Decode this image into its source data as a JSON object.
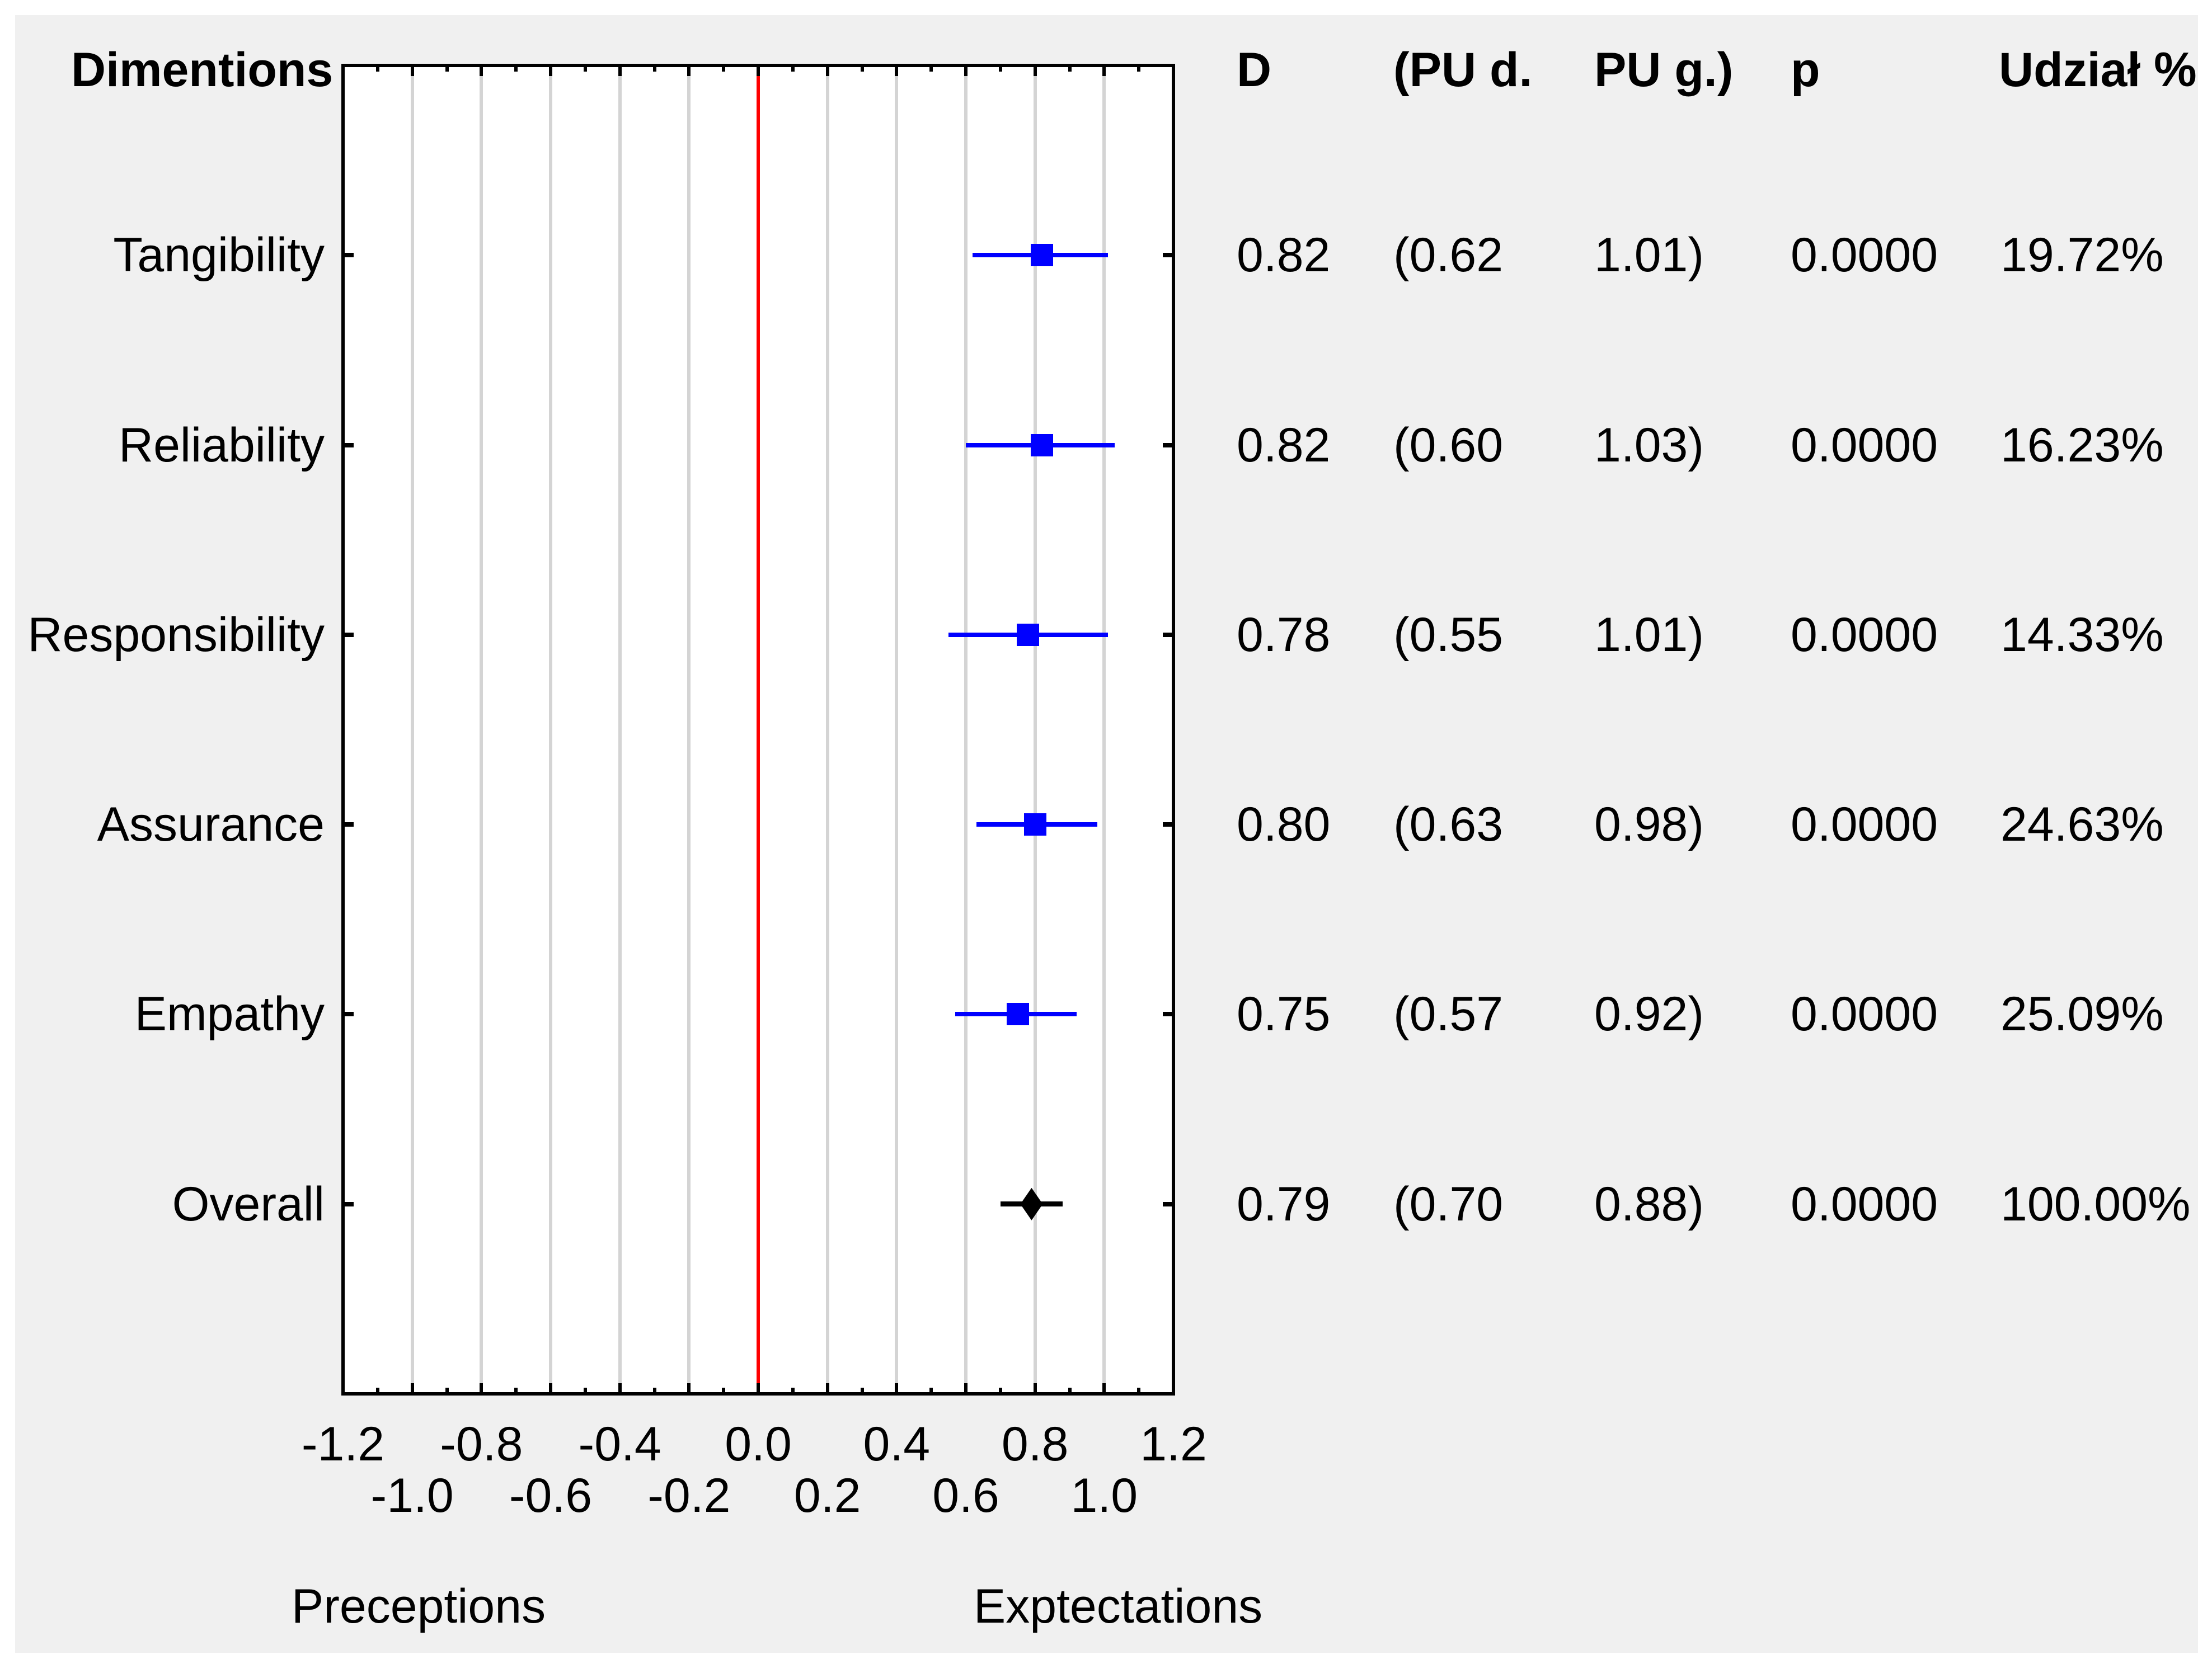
{
  "colors": {
    "panel_background": "#f0f0f0",
    "plot_background": "#ffffff",
    "axis": "#000000",
    "grid": "#d4d4d4",
    "zero_line": "#ff0000",
    "ci_marker": "#0000ff",
    "overall_marker": "#000000",
    "text": "#000000"
  },
  "table_header": {
    "dimensions": "Dimentions",
    "d": "D",
    "ci_low": "(PU d.",
    "ci_high": "PU g.)",
    "p": "p",
    "share": "Udział %"
  },
  "chart_data": {
    "type": "forest",
    "title": "",
    "xlabel": "",
    "xlim": [
      -1.2,
      1.2
    ],
    "grid": true,
    "x_major_tick_step": 0.2,
    "x_minor_tick_step": 0.1,
    "zero_line_x": 0.0,
    "x_axis_tick_labels_row1": [
      "-1.2",
      "-0.8",
      "-0.4",
      "0.0",
      "0.4",
      "0.8",
      "1.2"
    ],
    "x_axis_tick_labels_row2": [
      "-1.0",
      "-0.6",
      "-0.2",
      "0.2",
      "0.6",
      "1.0"
    ],
    "x_axis_caption_left": "Preceptions",
    "x_axis_caption_right": "Exptectations",
    "columns": [
      "D",
      "(PU d.",
      "PU g.)",
      "p",
      "Udział %"
    ],
    "rows": [
      {
        "dimension": "Tangibility",
        "d": 0.82,
        "ci_low": 0.62,
        "ci_high": 1.01,
        "p": "0.0000",
        "share": "19.72%",
        "marker": "square"
      },
      {
        "dimension": "Reliability",
        "d": 0.82,
        "ci_low": 0.6,
        "ci_high": 1.03,
        "p": "0.0000",
        "share": "16.23%",
        "marker": "square"
      },
      {
        "dimension": "Responsibility",
        "d": 0.78,
        "ci_low": 0.55,
        "ci_high": 1.01,
        "p": "0.0000",
        "share": "14.33%",
        "marker": "square"
      },
      {
        "dimension": "Assurance",
        "d": 0.8,
        "ci_low": 0.63,
        "ci_high": 0.98,
        "p": "0.0000",
        "share": "24.63%",
        "marker": "square"
      },
      {
        "dimension": "Empathy",
        "d": 0.75,
        "ci_low": 0.57,
        "ci_high": 0.92,
        "p": "0.0000",
        "share": "25.09%",
        "marker": "square"
      },
      {
        "dimension": "Overall",
        "d": 0.79,
        "ci_low": 0.7,
        "ci_high": 0.88,
        "p": "0.0000",
        "share": "100.00%",
        "marker": "diamond"
      }
    ]
  }
}
